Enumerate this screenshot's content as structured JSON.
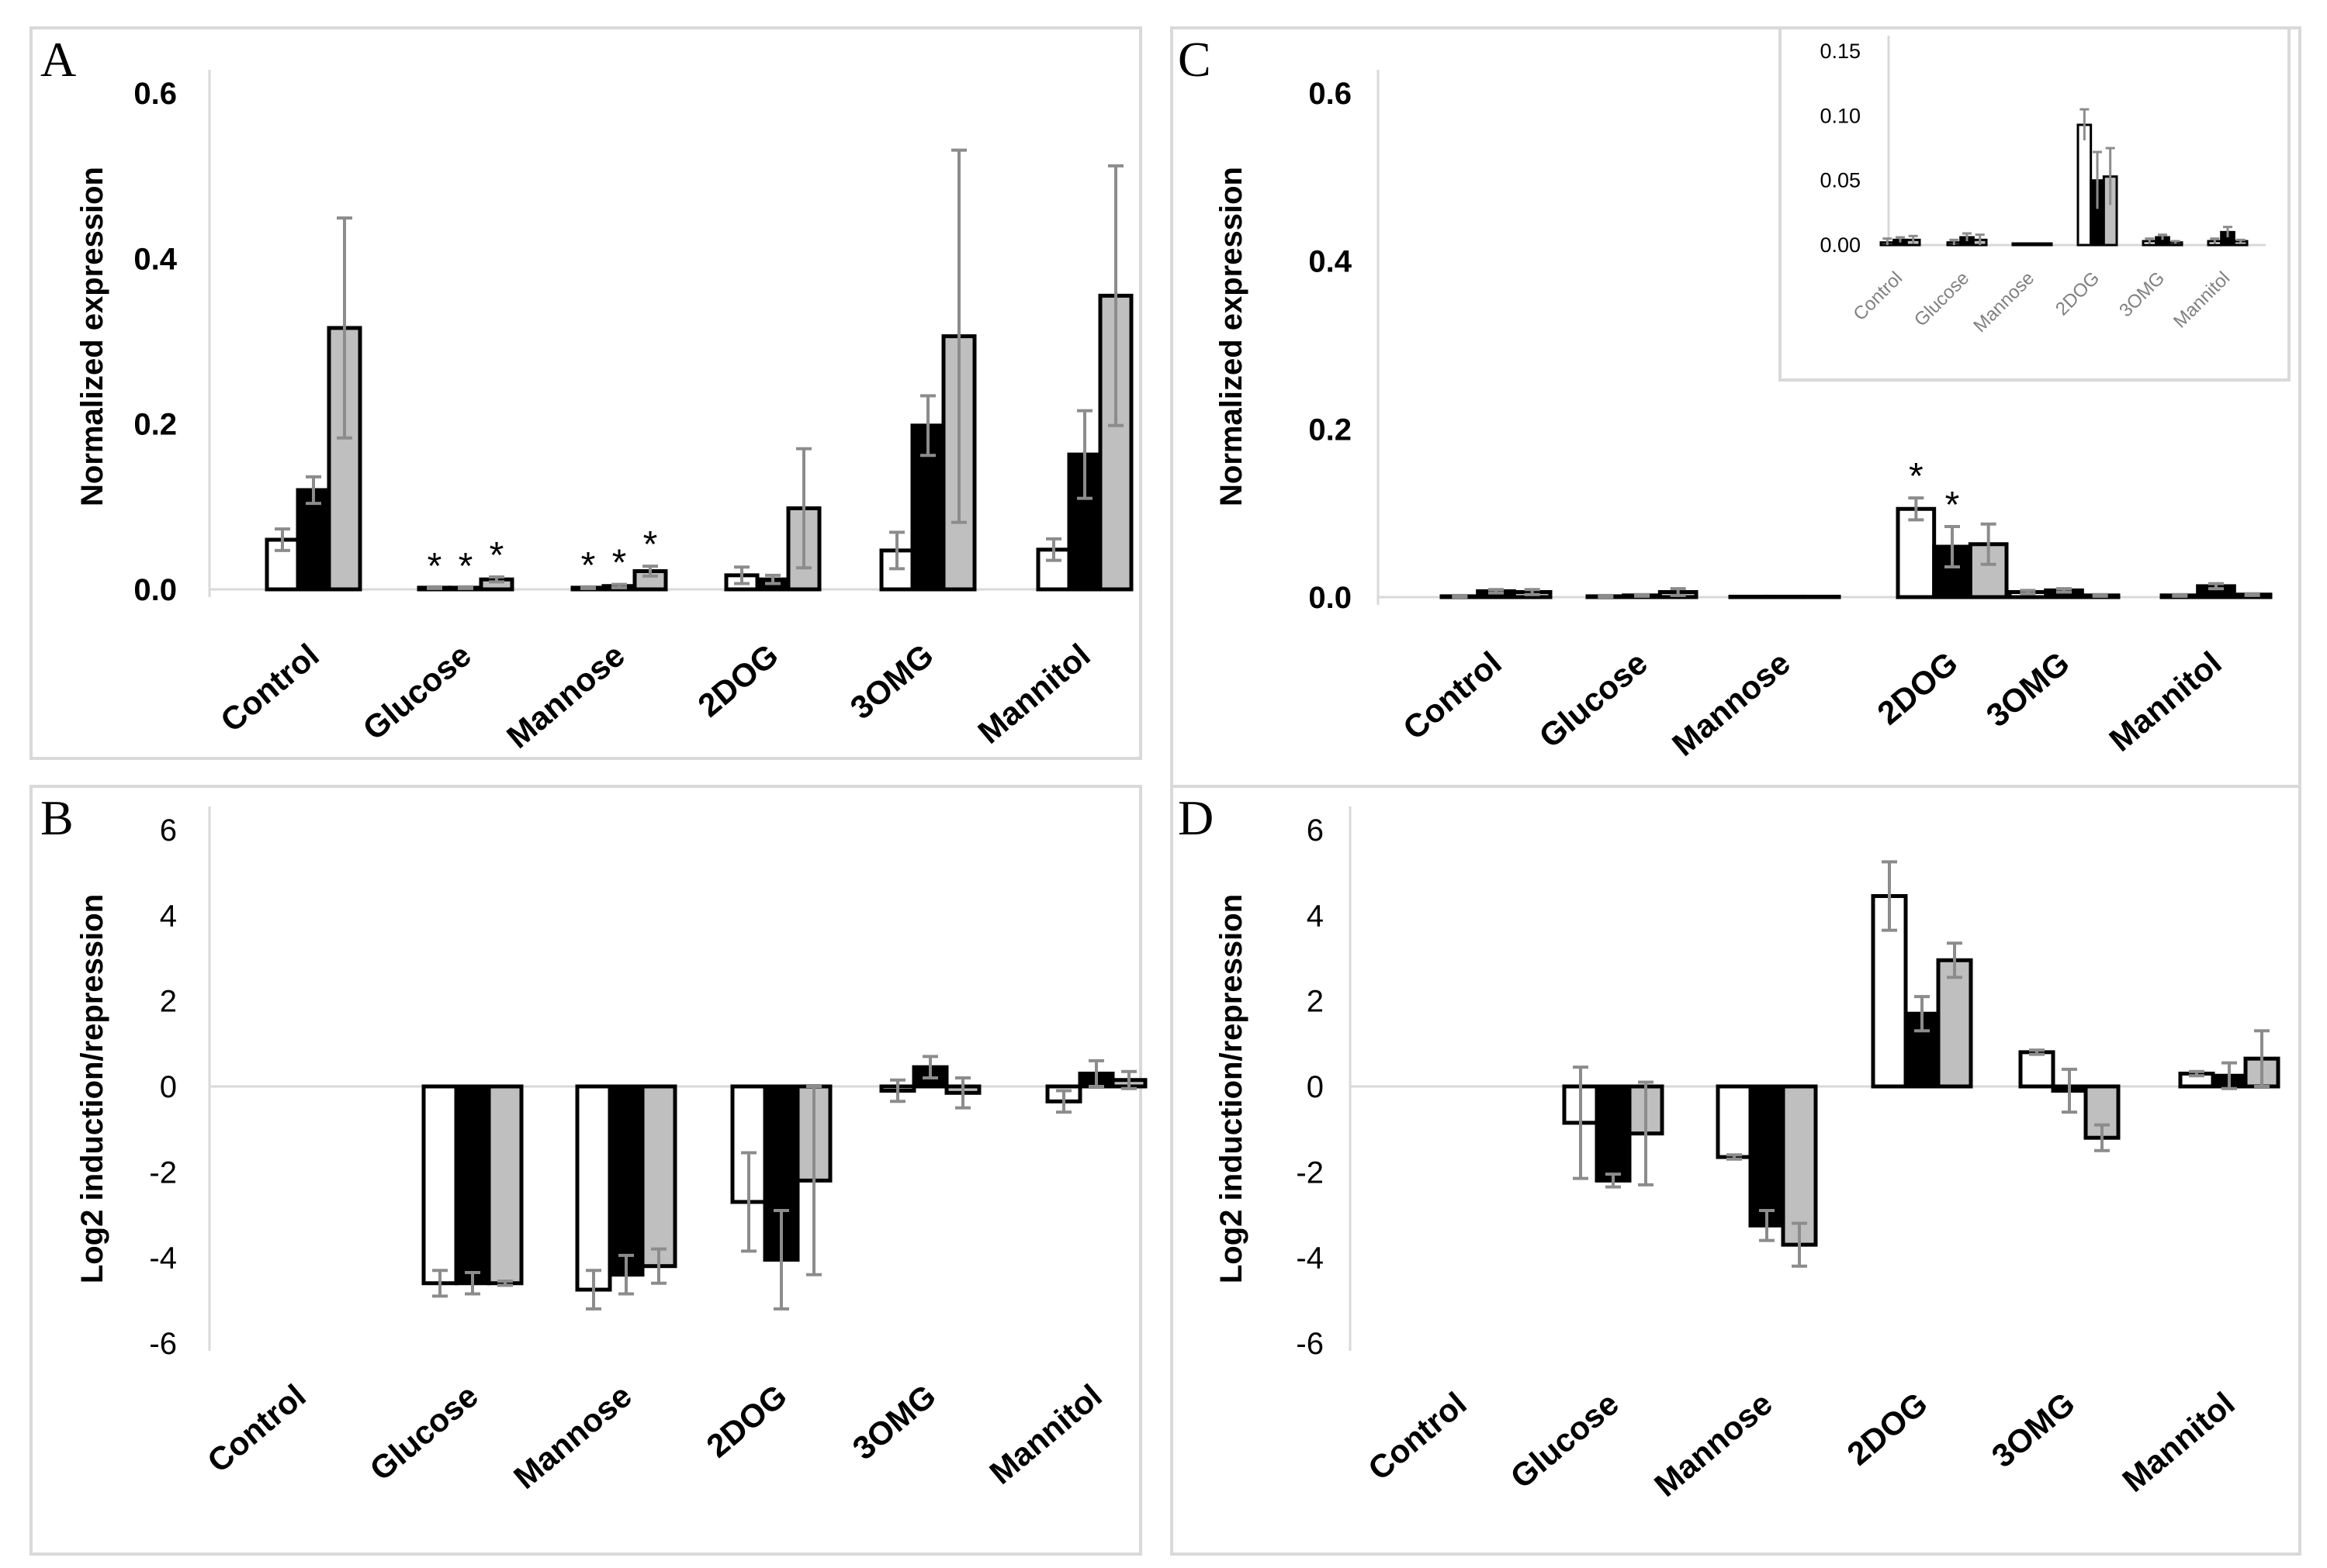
{
  "colors": {
    "series1": "#ffffff",
    "series2": "#000000",
    "series3": "#bfbfbf",
    "error": "#8c8c8c",
    "frame": "#d9d9d9"
  },
  "chart_data": [
    {
      "panel": "A",
      "type": "bar",
      "ylabel": "Normalized expression",
      "yticks": [
        "0.0",
        "0.2",
        "0.4",
        "0.6"
      ],
      "ylim": [
        0,
        0.6
      ],
      "categories": [
        "Control",
        "Glucose",
        "Mannose",
        "2DOG",
        "3OMG",
        "Mannitol"
      ],
      "series": [
        {
          "values": [
            0.06,
            0.002,
            0.002,
            0.017,
            0.047,
            0.048
          ],
          "errors": [
            0.013,
            0.001,
            0.001,
            0.01,
            0.022,
            0.013
          ]
        },
        {
          "values": [
            0.12,
            0.002,
            0.004,
            0.012,
            0.198,
            0.163
          ],
          "errors": [
            0.016,
            0.001,
            0.002,
            0.005,
            0.036,
            0.053
          ]
        },
        {
          "values": [
            0.316,
            0.012,
            0.022,
            0.098,
            0.306,
            0.355
          ],
          "errors": [
            0.133,
            0.003,
            0.006,
            0.072,
            0.225,
            0.157
          ]
        }
      ],
      "stars": [
        {
          "text": "*",
          "category": 1,
          "series": 0,
          "y": 0.002
        },
        {
          "text": "*",
          "category": 1,
          "series": 1,
          "y": 0.002
        },
        {
          "text": "*",
          "category": 1,
          "series": 2,
          "y": 0.015
        },
        {
          "text": "*",
          "category": 2,
          "series": 0,
          "y": 0.003
        },
        {
          "text": "*",
          "category": 2,
          "series": 1,
          "y": 0.006
        },
        {
          "text": "*",
          "category": 2,
          "series": 2,
          "y": 0.028
        }
      ]
    },
    {
      "panel": "B",
      "type": "bar",
      "ylabel": "Log2 induction/repression",
      "yticks": [
        "-6",
        "-4",
        "-2",
        "0",
        "2",
        "4",
        "6"
      ],
      "ylim": [
        -6,
        6
      ],
      "categories": [
        "Control",
        "Glucose",
        "Mannose",
        "2DOG",
        "3OMG",
        "Mannitol"
      ],
      "series": [
        {
          "values": [
            0,
            -4.6,
            -4.75,
            -2.7,
            -0.1,
            -0.35
          ],
          "errors": [
            0,
            0.3,
            0.45,
            1.15,
            0.25,
            0.25
          ]
        },
        {
          "values": [
            0,
            -4.6,
            -4.4,
            -4.05,
            0.45,
            0.3
          ],
          "errors": [
            0,
            0.25,
            0.45,
            1.15,
            0.25,
            0.3
          ]
        },
        {
          "values": [
            0,
            -4.6,
            -4.2,
            -2.2,
            -0.15,
            0.15
          ],
          "errors": [
            0,
            0.05,
            0.4,
            2.2,
            0.35,
            0.2
          ]
        }
      ]
    },
    {
      "panel": "C",
      "type": "bar",
      "ylabel": "Normalized expression",
      "yticks": [
        "0.0",
        "0.2",
        "0.4",
        "0.6"
      ],
      "ylim": [
        0,
        0.6
      ],
      "categories": [
        "Control",
        "Glucose",
        "Mannose",
        "2DOG",
        "3OMG",
        "Mannitol"
      ],
      "series": [
        {
          "values": [
            0.001,
            0.001,
            0.0005,
            0.105,
            0.006,
            0.002
          ],
          "errors": [
            0.001,
            0.001,
            0,
            0.013,
            0.002,
            0.001
          ]
        },
        {
          "values": [
            0.007,
            0.002,
            0.0005,
            0.06,
            0.008,
            0.013
          ],
          "errors": [
            0.002,
            0.001,
            0,
            0.024,
            0.002,
            0.003
          ]
        },
        {
          "values": [
            0.006,
            0.006,
            0.0005,
            0.063,
            0.002,
            0.003
          ],
          "errors": [
            0.003,
            0.004,
            0,
            0.024,
            0.001,
            0.001
          ]
        }
      ],
      "stars": [
        {
          "text": "*",
          "category": 3,
          "series": 0,
          "y": 0.118
        },
        {
          "text": "*",
          "category": 3,
          "series": 1,
          "y": 0.084
        }
      ],
      "inset": {
        "yticks": [
          "0.00",
          "0.05",
          "0.10",
          "0.15"
        ],
        "ylim": [
          0,
          0.15
        ],
        "categories": [
          "Control",
          "Glucose",
          "Mannose",
          "2DOG",
          "3OMG",
          "Mannitol"
        ],
        "series": [
          {
            "values": [
              0.002,
              0.002,
              0.0005,
              0.093,
              0.003,
              0.003
            ],
            "errors": [
              0.003,
              0.002,
              0,
              0.012,
              0.002,
              0.002
            ]
          },
          {
            "values": [
              0.004,
              0.006,
              0.0005,
              0.05,
              0.006,
              0.01
            ],
            "errors": [
              0.002,
              0.003,
              0,
              0.022,
              0.002,
              0.004
            ]
          },
          {
            "values": [
              0.004,
              0.004,
              0.0005,
              0.053,
              0.002,
              0.003
            ],
            "errors": [
              0.003,
              0.004,
              0,
              0.022,
              0.001,
              0.001
            ]
          }
        ]
      }
    },
    {
      "panel": "D",
      "type": "bar",
      "ylabel": "Log2 induction/repression",
      "yticks": [
        "-6",
        "-4",
        "-2",
        "0",
        "2",
        "4",
        "6"
      ],
      "ylim": [
        -6,
        6
      ],
      "categories": [
        "Control",
        "Glucose",
        "Mannose",
        "2DOG",
        "3OMG",
        "Mannitol"
      ],
      "series": [
        {
          "values": [
            0,
            -0.85,
            -1.65,
            4.45,
            0.8,
            0.3
          ],
          "errors": [
            0,
            1.3,
            0.05,
            0.8,
            0.05,
            0.05
          ]
        },
        {
          "values": [
            0,
            -2.2,
            -3.25,
            1.7,
            -0.1,
            0.25
          ],
          "errors": [
            0,
            0.15,
            0.35,
            0.4,
            0.5,
            0.3
          ]
        },
        {
          "values": [
            0,
            -1.1,
            -3.7,
            2.95,
            -1.2,
            0.65
          ],
          "errors": [
            0,
            1.2,
            0.5,
            0.4,
            0.3,
            0.65
          ]
        }
      ]
    }
  ]
}
